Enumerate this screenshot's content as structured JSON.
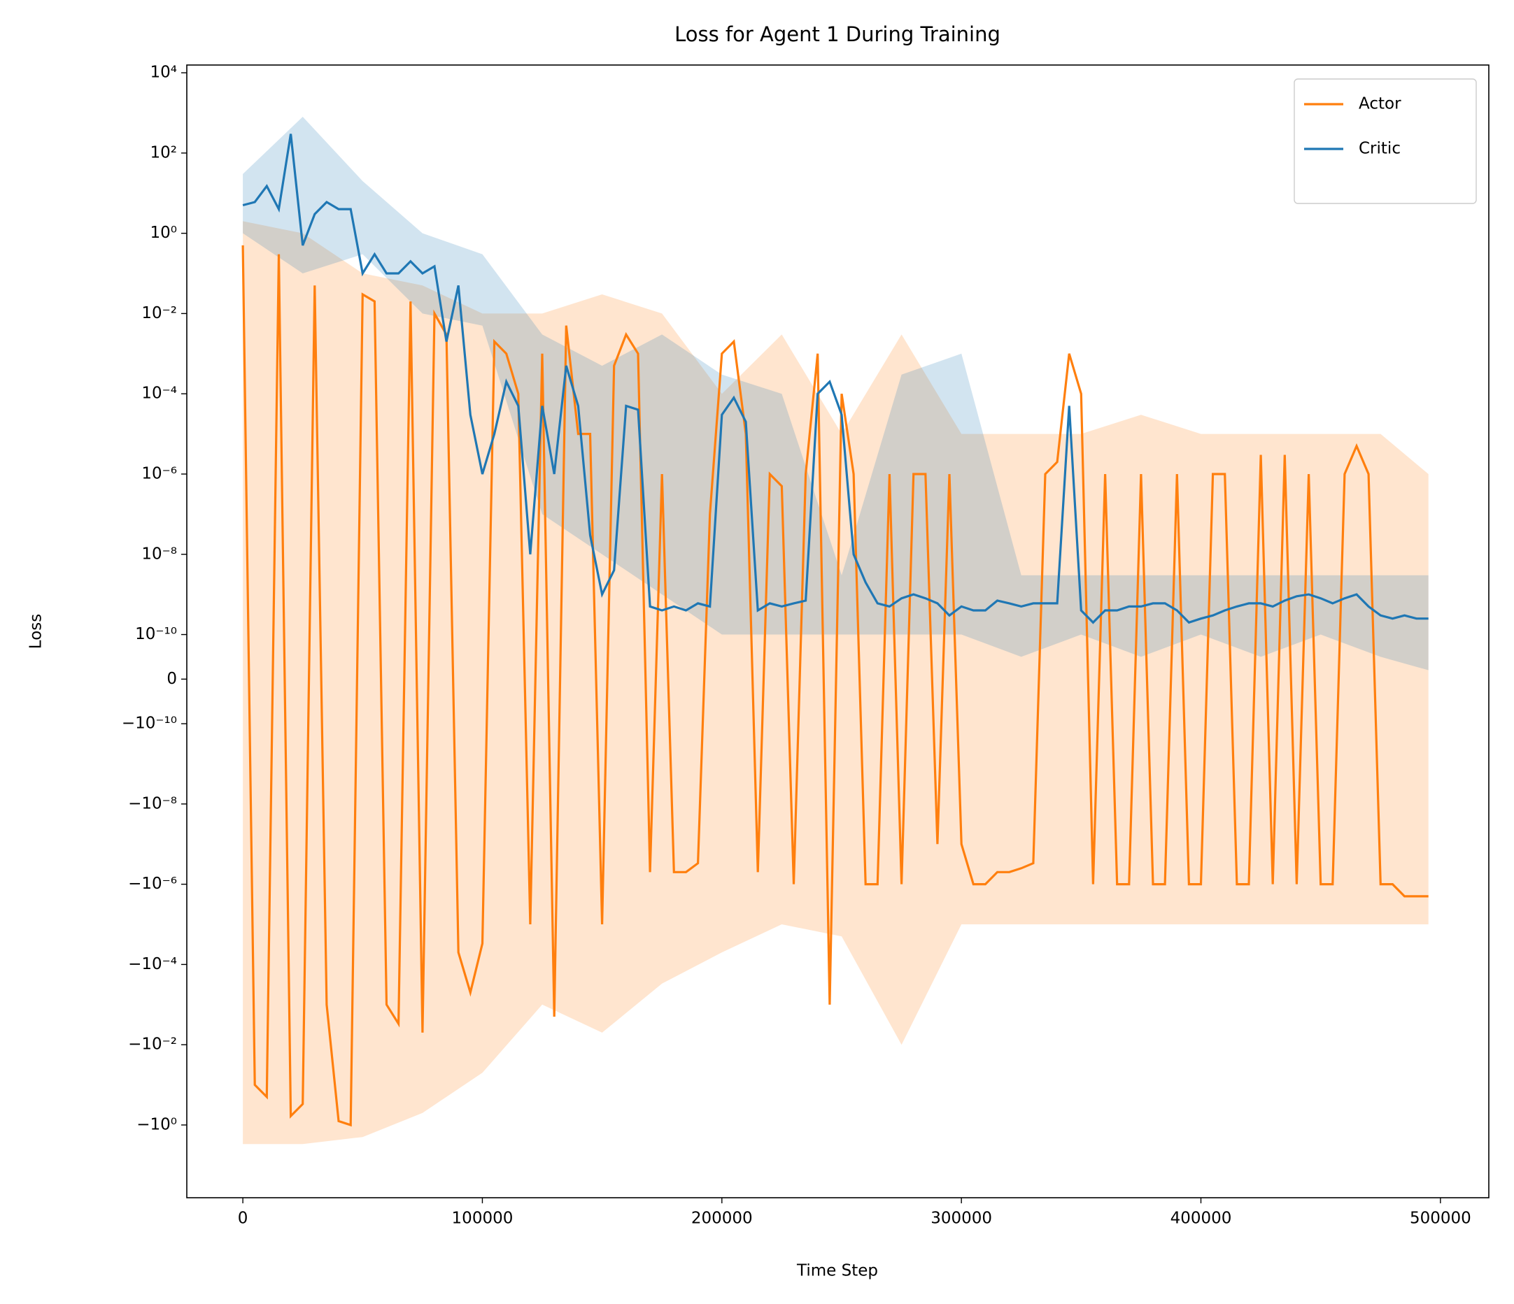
{
  "chart_data": {
    "type": "line",
    "title": "Loss for Agent 1 During Training",
    "x_label": "Time Step",
    "y_label": "Loss",
    "yscale": "symlog",
    "linthresh": 1e-10,
    "legend": "upper right",
    "xlim": [
      -23400,
      520200
    ],
    "ylim": [
      -65,
      15600
    ],
    "xticks": [
      0,
      100000,
      200000,
      300000,
      400000,
      500000
    ],
    "yticks": [
      {
        "value": 10000,
        "label": "10⁴"
      },
      {
        "value": 100,
        "label": "10²"
      },
      {
        "value": 1,
        "label": "10⁰"
      },
      {
        "value": 0.01,
        "label": "10⁻²"
      },
      {
        "value": 0.0001,
        "label": "10⁻⁴"
      },
      {
        "value": 1e-06,
        "label": "10⁻⁶"
      },
      {
        "value": 1e-08,
        "label": "10⁻⁸"
      },
      {
        "value": 1e-10,
        "label": "10⁻¹⁰"
      },
      0,
      {
        "value": -1e-10,
        "label": "−10⁻¹⁰"
      },
      {
        "value": -1e-08,
        "label": "−10⁻⁸"
      },
      {
        "value": -1e-06,
        "label": "−10⁻⁶"
      },
      {
        "value": -0.0001,
        "label": "−10⁻⁴"
      },
      {
        "value": -0.01,
        "label": "−10⁻²"
      },
      {
        "value": -1,
        "label": "−10⁰"
      }
    ],
    "x": [
      0,
      5000,
      10000,
      15000,
      20000,
      25000,
      30000,
      35000,
      40000,
      45000,
      50000,
      55000,
      60000,
      65000,
      70000,
      75000,
      80000,
      85000,
      90000,
      95000,
      100000,
      105000,
      110000,
      115000,
      120000,
      125000,
      130000,
      135000,
      140000,
      145000,
      150000,
      155000,
      160000,
      165000,
      170000,
      175000,
      180000,
      185000,
      190000,
      195000,
      200000,
      205000,
      210000,
      215000,
      220000,
      225000,
      230000,
      235000,
      240000,
      245000,
      250000,
      255000,
      260000,
      265000,
      270000,
      275000,
      280000,
      285000,
      290000,
      295000,
      300000,
      305000,
      310000,
      315000,
      320000,
      325000,
      330000,
      335000,
      340000,
      345000,
      350000,
      355000,
      360000,
      365000,
      370000,
      375000,
      380000,
      385000,
      390000,
      395000,
      400000,
      405000,
      410000,
      415000,
      420000,
      425000,
      430000,
      435000,
      440000,
      445000,
      450000,
      455000,
      460000,
      465000,
      470000,
      475000,
      480000,
      485000,
      490000,
      495000
    ],
    "series": [
      {
        "name": "Actor",
        "color": "#ff7f0e",
        "values": [
          0.5,
          -0.1,
          -0.2,
          0.3,
          -0.6,
          -0.3,
          0.05,
          -0.001,
          -0.8,
          -1,
          0.03,
          0.02,
          -0.001,
          -0.003,
          0.02,
          -0.005,
          0.01,
          0.003,
          -5e-05,
          -0.0005,
          -3e-05,
          0.002,
          0.001,
          0.0001,
          -1e-05,
          0.001,
          -0.002,
          0.005,
          1e-05,
          1e-05,
          -1e-05,
          0.0005,
          0.003,
          0.001,
          -5e-07,
          1e-06,
          -5e-07,
          -5e-07,
          -3e-07,
          1e-07,
          0.001,
          0.002,
          1e-05,
          -5e-07,
          1e-06,
          5e-07,
          -1e-06,
          1e-06,
          0.001,
          -0.001,
          0.0001,
          1e-06,
          -1e-06,
          -1e-06,
          1e-06,
          -1e-06,
          1e-06,
          1e-06,
          -1e-07,
          1e-06,
          -1e-07,
          -1e-06,
          -1e-06,
          -5e-07,
          -5e-07,
          -4e-07,
          -3e-07,
          1e-06,
          2e-06,
          0.001,
          0.0001,
          -1e-06,
          1e-06,
          -1e-06,
          -1e-06,
          1e-06,
          -1e-06,
          -1e-06,
          1e-06,
          -1e-06,
          -1e-06,
          1e-06,
          1e-06,
          -1e-06,
          -1e-06,
          3e-06,
          -1e-06,
          3e-06,
          -1e-06,
          1e-06,
          -1e-06,
          -1e-06,
          1e-06,
          5e-06,
          1e-06,
          -1e-06,
          -1e-06,
          -2e-06,
          -2e-06,
          -2e-06
        ],
        "band": {
          "x": [
            0,
            25000,
            50000,
            75000,
            100000,
            125000,
            150000,
            175000,
            200000,
            225000,
            250000,
            275000,
            300000,
            325000,
            350000,
            375000,
            400000,
            425000,
            450000,
            475000,
            495000
          ],
          "lower": [
            -3,
            -3,
            -2,
            -0.5,
            -0.05,
            -0.001,
            -0.005,
            -0.0003,
            -5e-05,
            -1e-05,
            -2e-05,
            -0.01,
            -1e-05,
            -1e-05,
            -1e-05,
            -1e-05,
            -1e-05,
            -1e-05,
            -1e-05,
            -1e-05,
            -1e-05
          ],
          "upper": [
            2,
            1,
            0.1,
            0.05,
            0.01,
            0.01,
            0.03,
            0.01,
            0.0001,
            0.003,
            1e-05,
            0.003,
            1e-05,
            1e-05,
            1e-05,
            3e-05,
            1e-05,
            1e-05,
            1e-05,
            1e-05,
            1e-06
          ]
        }
      },
      {
        "name": "Critic",
        "color": "#1f77b4",
        "values": [
          5,
          6,
          15,
          4,
          300,
          0.5,
          3,
          6,
          4,
          4,
          0.1,
          0.3,
          0.1,
          0.1,
          0.2,
          0.1,
          0.15,
          0.002,
          0.05,
          3e-05,
          1e-06,
          1e-05,
          0.0002,
          5e-05,
          1e-08,
          5e-05,
          1e-06,
          0.0005,
          5e-05,
          3e-08,
          1e-09,
          4e-09,
          5e-05,
          4e-05,
          5e-10,
          4e-10,
          5e-10,
          4e-10,
          6e-10,
          5e-10,
          3e-05,
          8e-05,
          2e-05,
          4e-10,
          6e-10,
          5e-10,
          6e-10,
          7e-10,
          0.0001,
          0.0002,
          3e-05,
          1e-08,
          2e-09,
          6e-10,
          5e-10,
          8e-10,
          1e-09,
          8e-10,
          6e-10,
          3e-10,
          5e-10,
          4e-10,
          4e-10,
          7e-10,
          6e-10,
          5e-10,
          6e-10,
          6e-10,
          6e-10,
          5e-05,
          4e-10,
          2e-10,
          4e-10,
          4e-10,
          5e-10,
          5e-10,
          6e-10,
          6e-10,
          4e-10,
          2e-10,
          2.5e-10,
          3e-10,
          4e-10,
          5e-10,
          6e-10,
          6e-10,
          5e-10,
          7e-10,
          9e-10,
          1e-09,
          8e-10,
          6e-10,
          8e-10,
          1e-09,
          5e-10,
          3e-10,
          2.5e-10,
          3e-10,
          2.5e-10,
          2.5e-10
        ],
        "band": {
          "x": [
            0,
            25000,
            50000,
            75000,
            100000,
            125000,
            150000,
            175000,
            200000,
            225000,
            250000,
            275000,
            300000,
            325000,
            350000,
            375000,
            400000,
            425000,
            450000,
            475000,
            495000
          ],
          "lower": [
            1,
            0.1,
            0.3,
            0.01,
            0.005,
            1e-07,
            1e-08,
            1e-09,
            1e-10,
            1e-10,
            1e-10,
            1e-10,
            1e-10,
            5e-11,
            1e-10,
            5e-11,
            1e-10,
            5e-11,
            1e-10,
            5e-11,
            2e-11
          ],
          "upper": [
            30,
            800,
            20,
            1,
            0.3,
            0.003,
            0.0005,
            0.003,
            0.0003,
            0.0001,
            3e-09,
            0.0003,
            0.001,
            3e-09,
            3e-09,
            3e-09,
            3e-09,
            3e-09,
            3e-09,
            3e-09,
            3e-09
          ]
        }
      }
    ]
  }
}
